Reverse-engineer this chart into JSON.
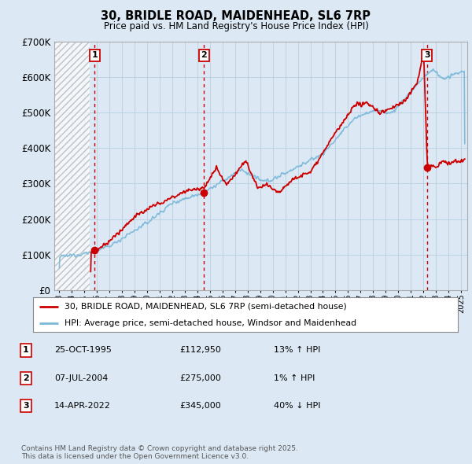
{
  "title1": "30, BRIDLE ROAD, MAIDENHEAD, SL6 7RP",
  "title2": "Price paid vs. HM Land Registry's House Price Index (HPI)",
  "ylim": [
    0,
    700000
  ],
  "yticks": [
    0,
    100000,
    200000,
    300000,
    400000,
    500000,
    600000,
    700000
  ],
  "ytick_labels": [
    "£0",
    "£100K",
    "£200K",
    "£300K",
    "£400K",
    "£500K",
    "£600K",
    "£700K"
  ],
  "xlim_start": 1992.6,
  "xlim_end": 2025.5,
  "hatch_end_year": 1995.4,
  "sale1_x": 1995.82,
  "sale1_y": 112950,
  "sale2_x": 2004.52,
  "sale2_y": 275000,
  "sale3_x": 2022.29,
  "sale3_y": 345000,
  "line_color_hpi": "#7ab8d9",
  "line_color_price": "#cc0000",
  "dot_color": "#cc0000",
  "dashed_color": "#cc0000",
  "legend_label1": "30, BRIDLE ROAD, MAIDENHEAD, SL6 7RP (semi-detached house)",
  "legend_label2": "HPI: Average price, semi-detached house, Windsor and Maidenhead",
  "table_entries": [
    {
      "num": "1",
      "date": "25-OCT-1995",
      "price": "£112,950",
      "change": "13% ↑ HPI"
    },
    {
      "num": "2",
      "date": "07-JUL-2004",
      "price": "£275,000",
      "change": "1% ↑ HPI"
    },
    {
      "num": "3",
      "date": "14-APR-2022",
      "price": "£345,000",
      "change": "40% ↓ HPI"
    }
  ],
  "footnote": "Contains HM Land Registry data © Crown copyright and database right 2025.\nThis data is licensed under the Open Government Licence v3.0.",
  "bg_color": "#dce9f5",
  "plot_bg": "#dce9f5",
  "grid_color": "#b8cfe0",
  "hatch_color": "#aaaaaa"
}
